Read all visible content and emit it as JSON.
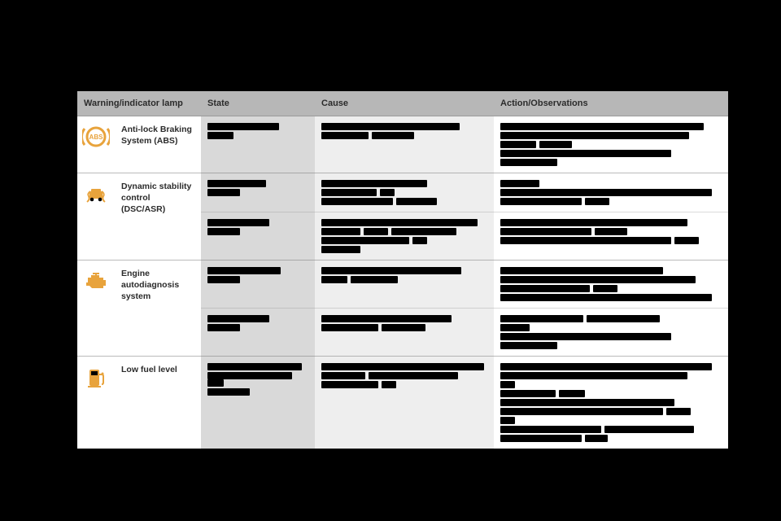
{
  "header": {
    "lamp": "Warning/indicator lamp",
    "state": "State",
    "cause": "Cause",
    "action": "Action/Observations"
  },
  "colors": {
    "page_bg": "#000000",
    "th_bg": "#b7b7b7",
    "state_bg": "#d9d9d9",
    "cause_bg": "#eeeeee",
    "action_bg": "#ffffff",
    "icon_amber": "#e8a33c",
    "text": "#2b2b2b"
  },
  "rows": [
    {
      "lamp": "Anti-lock Braking System (ABS)",
      "icon": "abs",
      "sub": [
        {
          "state_bars": [
            [
              88
            ],
            [
              32
            ]
          ],
          "cause_bars": [
            [
              170
            ],
            [
              58,
              52
            ]
          ],
          "action_bars": [
            [
              250
            ],
            [
              232
            ],
            [
              44,
              40
            ],
            [
              210
            ],
            [
              70
            ]
          ]
        }
      ]
    },
    {
      "lamp": "Dynamic stability control  (DSC/ASR)",
      "icon": "dsc",
      "sub": [
        {
          "state_bars": [
            [
              72
            ],
            [
              40
            ]
          ],
          "cause_bars": [
            [
              130
            ],
            [
              68,
              18
            ],
            [
              88,
              50
            ]
          ],
          "action_bars": [
            [
              48
            ],
            [
              260
            ],
            [
              100,
              30
            ]
          ]
        },
        {
          "state_bars": [
            [
              76
            ],
            [
              40
            ]
          ],
          "cause_bars": [
            [
              192
            ],
            [
              48,
              30,
              80
            ],
            [
              108,
              18
            ],
            [
              48
            ]
          ],
          "action_bars": [
            [
              230
            ],
            [
              112,
              40
            ],
            [
              210,
              30
            ]
          ]
        }
      ]
    },
    {
      "lamp": "Engine autodiagnosis system",
      "icon": "engine",
      "sub": [
        {
          "state_bars": [
            [
              90
            ],
            [
              40
            ]
          ],
          "cause_bars": [
            [
              172
            ],
            [
              32,
              58
            ]
          ],
          "action_bars": [
            [
              200
            ],
            [
              240
            ],
            [
              110,
              30
            ],
            [
              260
            ]
          ]
        },
        {
          "state_bars": [
            [
              76
            ],
            [
              40
            ]
          ],
          "cause_bars": [
            [
              160
            ],
            [
              70,
              54
            ]
          ],
          "action_bars": [
            [
              102,
              90
            ],
            [
              36
            ],
            [
              210
            ],
            [
              70
            ]
          ]
        }
      ]
    },
    {
      "lamp": "Low fuel level",
      "icon": "fuel",
      "sub": [
        {
          "state_bars": [
            [
              116
            ],
            [
              104,
              20
            ],
            [
              52
            ]
          ],
          "cause_bars": [
            [
              200
            ],
            [
              54,
              110
            ],
            [
              70,
              18
            ]
          ],
          "action_bars": [
            [
              260
            ],
            [
              230
            ],
            [
              18
            ],
            [
              68,
              32
            ],
            [
              214
            ],
            [
              200,
              30
            ],
            [
              18
            ],
            [
              124,
              110
            ],
            [
              100,
              28
            ]
          ]
        }
      ]
    }
  ]
}
